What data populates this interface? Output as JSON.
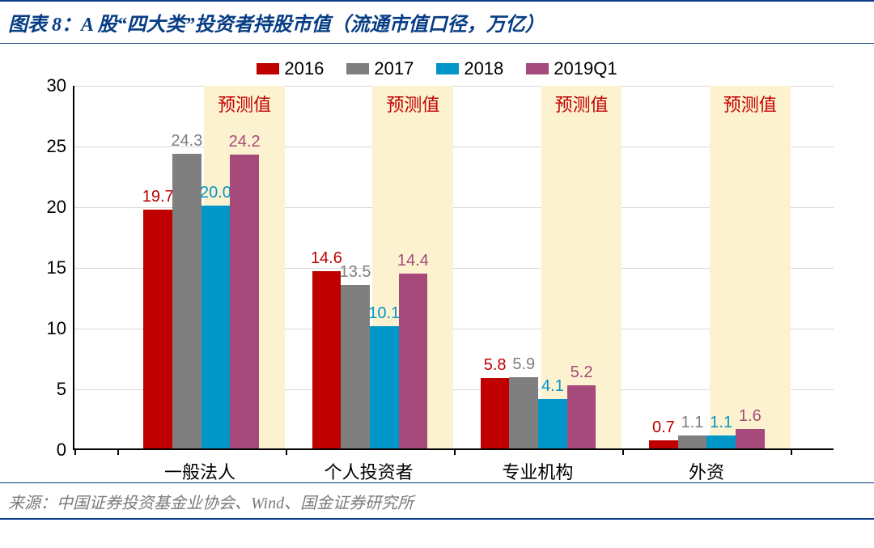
{
  "title": "图表 8：A 股“四大类”投资者持股市值（流通市值口径，万亿）",
  "title_color": "#073d85",
  "title_border_color": "#073d85",
  "title_fontsize": 24,
  "source": "来源：中国证券投资基金业协会、Wind、国金证券研究所",
  "source_color": "#7a7a7a",
  "source_border_color": "#073d85",
  "legend": {
    "items": [
      {
        "label": "2016",
        "color": "#c00000"
      },
      {
        "label": "2017",
        "color": "#7f7f7f"
      },
      {
        "label": "2018",
        "color": "#0096c8"
      },
      {
        "label": "2019Q1",
        "color": "#a54a7b"
      }
    ],
    "fontsize": 22
  },
  "forecast": {
    "label": "预测值",
    "band_color": "#fdf2d0",
    "text_color": "#c00000"
  },
  "chart": {
    "type": "bar",
    "ylim": [
      0,
      30
    ],
    "ytick_step": 5,
    "yticks": [
      "0",
      "5",
      "10",
      "15",
      "20",
      "25",
      "30"
    ],
    "grid_color": "#d9d9d9",
    "axis_color": "#000000",
    "background_color": "#ffffff",
    "categories": [
      {
        "label": "一般法人",
        "values": [
          19.7,
          24.3,
          20.0,
          24.2
        ]
      },
      {
        "label": "个人投资者",
        "values": [
          14.6,
          13.5,
          10.1,
          14.4
        ]
      },
      {
        "label": "专业机构",
        "values": [
          5.8,
          5.9,
          4.1,
          5.2
        ]
      },
      {
        "label": "外资",
        "values": [
          0.7,
          1.1,
          1.1,
          1.6
        ]
      }
    ],
    "bar_width_pct": 3.8,
    "group_gap_pct": 7.0,
    "forecast_band_series_index": 3,
    "label_fontsize": 20
  }
}
